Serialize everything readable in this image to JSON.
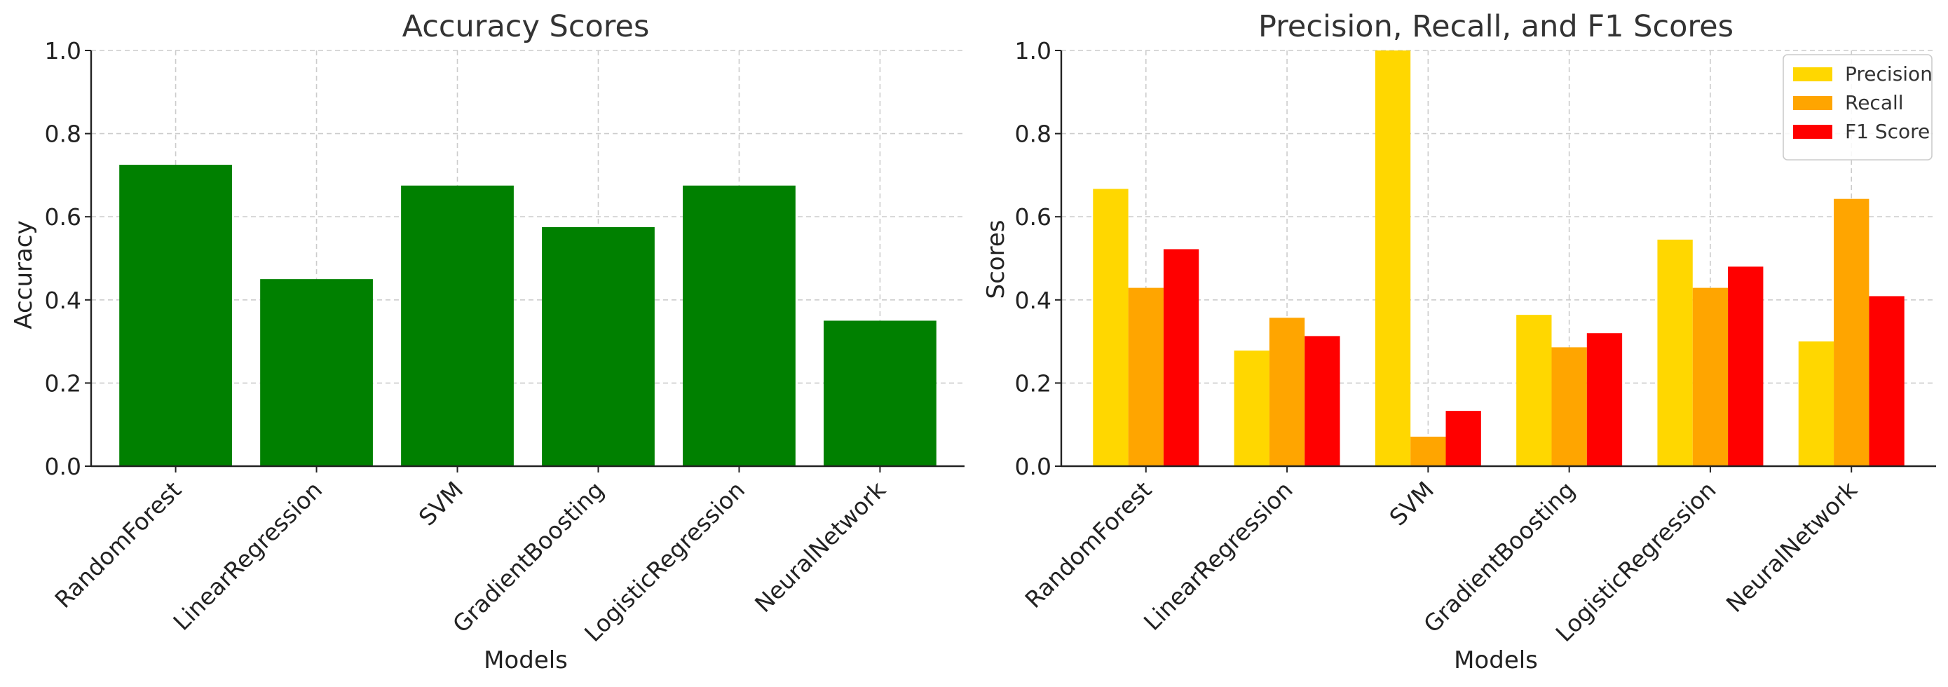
{
  "chart_data": [
    {
      "type": "bar",
      "title": "Accuracy Scores",
      "xlabel": "Models",
      "ylabel": "Accuracy",
      "categories": [
        "RandomForest",
        "LinearRegression",
        "SVM",
        "GradientBoosting",
        "LogisticRegression",
        "NeuralNetwork"
      ],
      "series": [
        {
          "values": [
            0.725,
            0.45,
            0.675,
            0.575,
            0.675,
            0.35
          ],
          "color": "#008000"
        }
      ],
      "ylim": [
        0,
        1
      ],
      "yticks": [
        "0.0",
        "0.2",
        "0.4",
        "0.6",
        "0.8",
        "1.0"
      ],
      "grid": true
    },
    {
      "type": "bar",
      "title": "Precision, Recall, and F1 Scores",
      "xlabel": "Models",
      "ylabel": "Scores",
      "categories": [
        "RandomForest",
        "LinearRegression",
        "SVM",
        "GradientBoosting",
        "LogisticRegression",
        "NeuralNetwork"
      ],
      "series": [
        {
          "name": "Precision",
          "values": [
            0.667,
            0.278,
            1.0,
            0.364,
            0.545,
            0.3
          ],
          "color": "#FFD700"
        },
        {
          "name": "Recall",
          "values": [
            0.429,
            0.357,
            0.071,
            0.286,
            0.429,
            0.643
          ],
          "color": "#FFA500"
        },
        {
          "name": "F1 Score",
          "values": [
            0.522,
            0.313,
            0.133,
            0.32,
            0.48,
            0.409
          ],
          "color": "#FF0000"
        }
      ],
      "ylim": [
        0,
        1
      ],
      "yticks": [
        "0.0",
        "0.2",
        "0.4",
        "0.6",
        "0.8",
        "1.0"
      ],
      "grid": true,
      "legend": "top-right"
    }
  ]
}
